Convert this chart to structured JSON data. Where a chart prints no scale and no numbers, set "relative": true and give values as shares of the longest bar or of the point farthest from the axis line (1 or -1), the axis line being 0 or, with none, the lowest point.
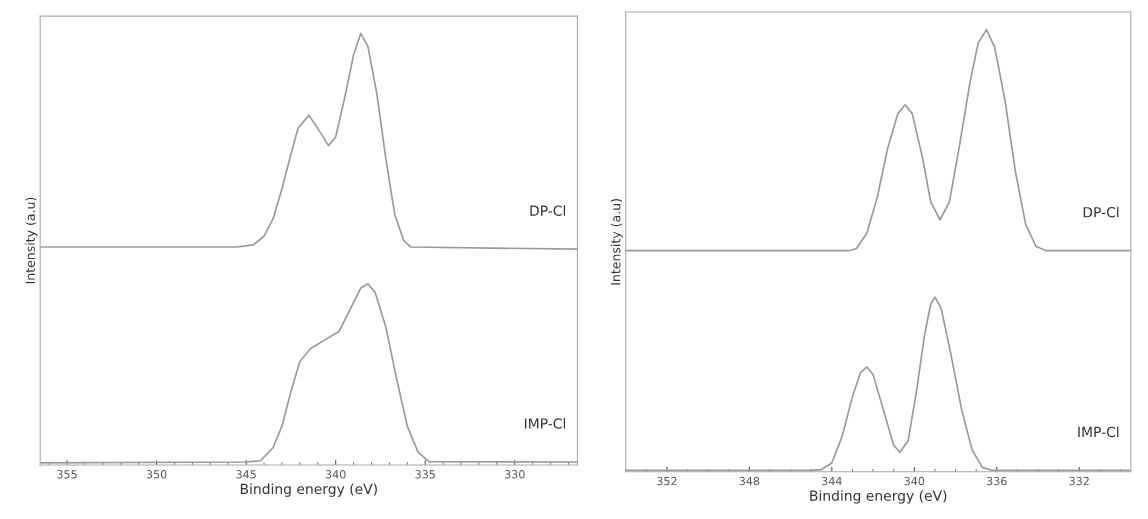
{
  "chart_data": [
    {
      "type": "line",
      "relative": true,
      "xlabel": "Binding energy (eV)",
      "ylabel": "Intensity (a.u)",
      "xlim": [
        356.5,
        326.5
      ],
      "xticks": [
        355,
        350,
        345,
        340,
        335,
        330
      ],
      "tick_labels": "x",
      "grid": false,
      "legend": false,
      "marker": "none",
      "line_style": "solid",
      "series": [
        {
          "name": "DP-Cl",
          "color": "#9a9a9a",
          "x": [
            356.5,
            345.5,
            344.6,
            344,
            343.5,
            343,
            342.5,
            342.1,
            341.5,
            341,
            340.4,
            340,
            339.5,
            339,
            338.6,
            338.2,
            337.7,
            337.2,
            336.7,
            336.2,
            335.8,
            326.5
          ],
          "values": [
            0.505,
            0.505,
            0.51,
            0.53,
            0.57,
            0.64,
            0.72,
            0.78,
            0.81,
            0.78,
            0.74,
            0.76,
            0.85,
            0.95,
            1.0,
            0.97,
            0.86,
            0.71,
            0.58,
            0.52,
            0.505,
            0.5
          ]
        },
        {
          "name": "IMP-Cl",
          "color": "#9a9a9a",
          "x": [
            356.5,
            345,
            344.2,
            343.5,
            343,
            342.5,
            342,
            341.4,
            340.6,
            339.8,
            339.2,
            338.6,
            338.2,
            337.8,
            337.2,
            336.6,
            336,
            335.4,
            334.8,
            326.5
          ],
          "values": [
            0.005,
            0.007,
            0.01,
            0.04,
            0.09,
            0.17,
            0.24,
            0.27,
            0.29,
            0.31,
            0.36,
            0.41,
            0.42,
            0.4,
            0.32,
            0.2,
            0.09,
            0.03,
            0.008,
            0.007
          ]
        }
      ]
    },
    {
      "type": "line",
      "relative": true,
      "xlabel": "Binding energy (eV)",
      "ylabel": "Intensity (a.u)",
      "xlim": [
        354,
        329.5
      ],
      "xticks": [
        352,
        348,
        344,
        340,
        336,
        332
      ],
      "tick_labels": "x",
      "grid": false,
      "legend": false,
      "marker": "none",
      "line_style": "solid",
      "series": [
        {
          "name": "DP-Cl",
          "color": "#9a9a9a",
          "x": [
            354,
            343.2,
            342.8,
            342.3,
            341.8,
            341.3,
            340.8,
            340.45,
            340.1,
            339.6,
            339.2,
            338.75,
            338.3,
            337.8,
            337.3,
            336.9,
            336.5,
            336.1,
            335.6,
            335.1,
            334.6,
            334.1,
            333.6,
            329.5
          ],
          "values": [
            0.5,
            0.5,
            0.505,
            0.54,
            0.62,
            0.73,
            0.81,
            0.83,
            0.81,
            0.71,
            0.61,
            0.57,
            0.61,
            0.74,
            0.88,
            0.97,
            1.0,
            0.96,
            0.84,
            0.68,
            0.56,
            0.51,
            0.5,
            0.5
          ]
        },
        {
          "name": "IMP-Cl",
          "color": "#9a9a9a",
          "x": [
            354,
            345,
            344.5,
            344,
            343.5,
            343,
            342.6,
            342.3,
            342,
            341.5,
            341,
            340.7,
            340.3,
            339.9,
            339.5,
            339.2,
            339,
            338.7,
            338.2,
            337.7,
            337.2,
            336.7,
            336.2,
            329.5
          ],
          "values": [
            0.003,
            0.003,
            0.005,
            0.02,
            0.08,
            0.17,
            0.225,
            0.237,
            0.22,
            0.14,
            0.06,
            0.044,
            0.07,
            0.18,
            0.31,
            0.38,
            0.395,
            0.37,
            0.26,
            0.14,
            0.05,
            0.01,
            0.003,
            0.003
          ]
        }
      ]
    }
  ]
}
